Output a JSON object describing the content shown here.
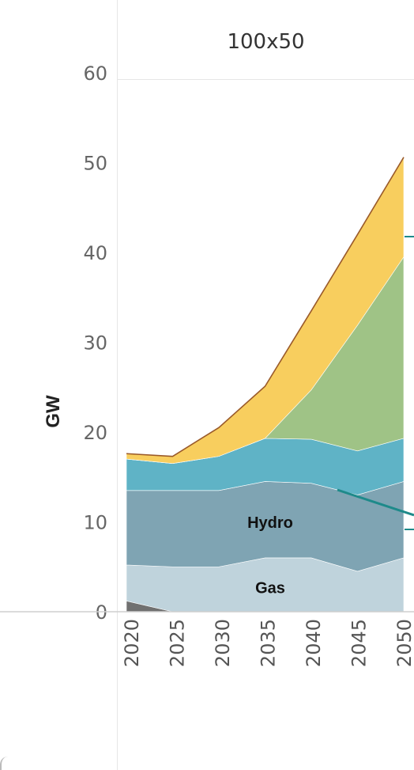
{
  "chart_data": {
    "type": "area",
    "stacked": true,
    "panel_title": "100x50",
    "ylabel": "GW",
    "xlabel": "",
    "x": [
      2020,
      2025,
      2030,
      2035,
      2040,
      2045,
      2050
    ],
    "x_tick_labels": [
      "2020",
      "2025",
      "2030",
      "2035",
      "2040",
      "2045",
      "2050"
    ],
    "ylim": [
      0,
      65
    ],
    "y_ticks": [
      0,
      10,
      20,
      30,
      40,
      50,
      60
    ],
    "grid": false,
    "legend": "none",
    "series": [
      {
        "name": "",
        "color": "#707070",
        "values": [
          1.2,
          0,
          0,
          0,
          0,
          0,
          0
        ]
      },
      {
        "name": "Gas",
        "color": "#bfd3dc",
        "values": [
          4.0,
          5.0,
          5.0,
          6.0,
          6.0,
          4.5,
          6.0
        ]
      },
      {
        "name": "Hydro",
        "color": "#7fa4b3",
        "values": [
          8.3,
          8.5,
          8.5,
          8.5,
          8.3,
          8.5,
          8.5
        ]
      },
      {
        "name": "",
        "color": "#5fb3c6",
        "values": [
          3.5,
          3.0,
          3.8,
          4.8,
          4.9,
          4.9,
          4.8
        ]
      },
      {
        "name": "",
        "color": "#9fc386",
        "values": [
          0,
          0,
          0,
          0,
          5.5,
          14.0,
          20.2
        ]
      },
      {
        "name": "",
        "color": "#f8ce5e",
        "values": [
          0.6,
          0.8,
          3.2,
          5.8,
          8.8,
          10.1,
          11.1
        ]
      }
    ],
    "total_line_color": "#9a5a2a",
    "area_labels": [
      {
        "series": "Hydro",
        "text": "Hydro"
      },
      {
        "series": "Gas",
        "text": "Gas"
      }
    ],
    "annotation_color": "#1e8a8a"
  }
}
